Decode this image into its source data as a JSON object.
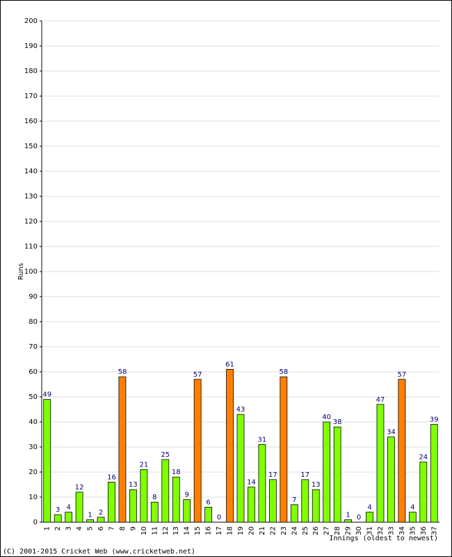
{
  "chart_data": {
    "type": "bar",
    "y_label": "Runs",
    "x_label": "Innings (oldest to newest)",
    "footer": "(C) 2001-2015 Cricket Web (www.cricketweb.net)",
    "categories": [
      "1",
      "2",
      "3",
      "4",
      "5",
      "6",
      "7",
      "8",
      "9",
      "10",
      "11",
      "12",
      "13",
      "14",
      "15",
      "16",
      "17",
      "18",
      "19",
      "20",
      "21",
      "22",
      "23",
      "24",
      "25",
      "26",
      "27",
      "28",
      "29",
      "30",
      "31",
      "32",
      "33",
      "34",
      "35",
      "36",
      "37"
    ],
    "values": [
      49,
      3,
      4,
      12,
      1,
      2,
      16,
      58,
      13,
      21,
      8,
      25,
      18,
      9,
      57,
      6,
      0,
      61,
      43,
      14,
      31,
      17,
      58,
      7,
      17,
      13,
      40,
      38,
      1,
      0,
      4,
      47,
      34,
      57,
      4,
      24,
      39
    ],
    "colors": [
      "#80ff00",
      "#80ff00",
      "#80ff00",
      "#80ff00",
      "#80ff00",
      "#80ff00",
      "#80ff00",
      "#ff8000",
      "#80ff00",
      "#80ff00",
      "#80ff00",
      "#80ff00",
      "#80ff00",
      "#80ff00",
      "#ff8000",
      "#80ff00",
      "#80ff00",
      "#ff8000",
      "#80ff00",
      "#80ff00",
      "#80ff00",
      "#80ff00",
      "#ff8000",
      "#80ff00",
      "#80ff00",
      "#80ff00",
      "#80ff00",
      "#80ff00",
      "#80ff00",
      "#80ff00",
      "#80ff00",
      "#80ff00",
      "#80ff00",
      "#ff8000",
      "#80ff00",
      "#80ff00",
      "#80ff00"
    ],
    "ylim": [
      0,
      200
    ],
    "yticks": [
      0,
      10,
      20,
      30,
      40,
      50,
      60,
      70,
      80,
      90,
      100,
      110,
      120,
      130,
      140,
      150,
      160,
      170,
      180,
      190,
      200
    ],
    "grid": true
  }
}
